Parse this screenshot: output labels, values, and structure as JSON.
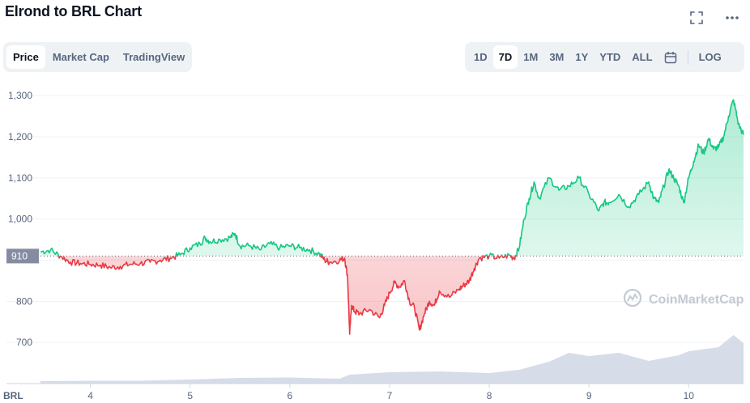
{
  "title": "Elrond to BRL Chart",
  "header_icons": [
    {
      "name": "fullscreen-icon"
    },
    {
      "name": "more-icon"
    }
  ],
  "view_tabs": [
    {
      "label": "Price",
      "active": true
    },
    {
      "label": "Market Cap",
      "active": false
    },
    {
      "label": "TradingView",
      "active": false
    }
  ],
  "range_tabs": [
    {
      "label": "1D",
      "active": false
    },
    {
      "label": "7D",
      "active": true
    },
    {
      "label": "1M",
      "active": false
    },
    {
      "label": "3M",
      "active": false
    },
    {
      "label": "1Y",
      "active": false
    },
    {
      "label": "YTD",
      "active": false
    },
    {
      "label": "ALL",
      "active": false
    }
  ],
  "calendar_icon": "calendar-icon",
  "log_label": "LOG",
  "watermark": "CoinMarketCap",
  "colors": {
    "up": "#16c784",
    "down": "#ea3943",
    "volume": "#cfd6e4",
    "grid": "#eff2f5",
    "baseline_label_bg": "#858ca2"
  },
  "chart_data": {
    "type": "line",
    "title": "Elrond to BRL Chart",
    "currency_label": "BRL",
    "baseline": 910,
    "baseline_label": "910",
    "ylim": [
      600,
      1320
    ],
    "y_ticks": [
      700,
      800,
      900,
      1000,
      1100,
      1200,
      1300
    ],
    "y_tick_labels": [
      "700",
      "800",
      "",
      "1,000",
      "1,100",
      "1,200",
      "1,300"
    ],
    "xlim": [
      3.5,
      10.55
    ],
    "x_ticks": [
      4,
      5,
      6,
      7,
      8,
      9,
      10
    ],
    "x_tick_labels": [
      "4",
      "5",
      "6",
      "7",
      "8",
      "9",
      "10"
    ],
    "grid": true,
    "series": [
      {
        "x": [
          3.5,
          3.6,
          3.7,
          3.8,
          3.9,
          4.0,
          4.1,
          4.2,
          4.3,
          4.4,
          4.5,
          4.6,
          4.7,
          4.8,
          4.9,
          5.0,
          5.1,
          5.15,
          5.2,
          5.3,
          5.4,
          5.45,
          5.5,
          5.6,
          5.7,
          5.8,
          5.9,
          6.0,
          6.1,
          6.2,
          6.3,
          6.35,
          6.4,
          6.5,
          6.55,
          6.58,
          6.6,
          6.62,
          6.65,
          6.7,
          6.8,
          6.9,
          6.95,
          7.0,
          7.05,
          7.1,
          7.15,
          7.2,
          7.25,
          7.3,
          7.35,
          7.4,
          7.45,
          7.5,
          7.6,
          7.7,
          7.75,
          7.8,
          7.85,
          7.9,
          8.0,
          8.1,
          8.2,
          8.25,
          8.3,
          8.35,
          8.4,
          8.45,
          8.5,
          8.6,
          8.7,
          8.8,
          8.9,
          9.0,
          9.1,
          9.15,
          9.2,
          9.3,
          9.4,
          9.5,
          9.6,
          9.65,
          9.7,
          9.75,
          9.8,
          9.85,
          9.9,
          9.95,
          10.0,
          10.05,
          10.1,
          10.15,
          10.2,
          10.25,
          10.3,
          10.35,
          10.4,
          10.45,
          10.5,
          10.55
        ],
        "y": [
          920,
          925,
          910,
          895,
          892,
          890,
          888,
          882,
          885,
          890,
          892,
          895,
          900,
          905,
          913,
          930,
          940,
          955,
          945,
          950,
          955,
          965,
          935,
          935,
          925,
          940,
          930,
          935,
          930,
          925,
          915,
          900,
          895,
          900,
          905,
          860,
          720,
          790,
          775,
          770,
          780,
          760,
          790,
          820,
          845,
          835,
          850,
          800,
          785,
          730,
          770,
          800,
          790,
          825,
          810,
          830,
          840,
          850,
          880,
          905,
          910,
          905,
          912,
          905,
          930,
          1000,
          1050,
          1090,
          1050,
          1100,
          1070,
          1080,
          1100,
          1060,
          1020,
          1040,
          1040,
          1060,
          1030,
          1060,
          1090,
          1050,
          1040,
          1080,
          1120,
          1100,
          1080,
          1040,
          1100,
          1140,
          1180,
          1160,
          1195,
          1170,
          1175,
          1200,
          1250,
          1290,
          1230,
          1205
        ]
      }
    ],
    "volume": {
      "x": [
        3.5,
        4.0,
        4.5,
        5.0,
        5.5,
        6.0,
        6.5,
        6.6,
        7.0,
        7.5,
        8.0,
        8.3,
        8.6,
        8.8,
        9.0,
        9.3,
        9.6,
        9.9,
        10.0,
        10.3,
        10.45,
        10.55
      ],
      "values": [
        3,
        3.5,
        3.5,
        5,
        7,
        7.5,
        6,
        11,
        14,
        15,
        13,
        17,
        27,
        38,
        34,
        38,
        28,
        35,
        40,
        45,
        60,
        50
      ]
    }
  }
}
